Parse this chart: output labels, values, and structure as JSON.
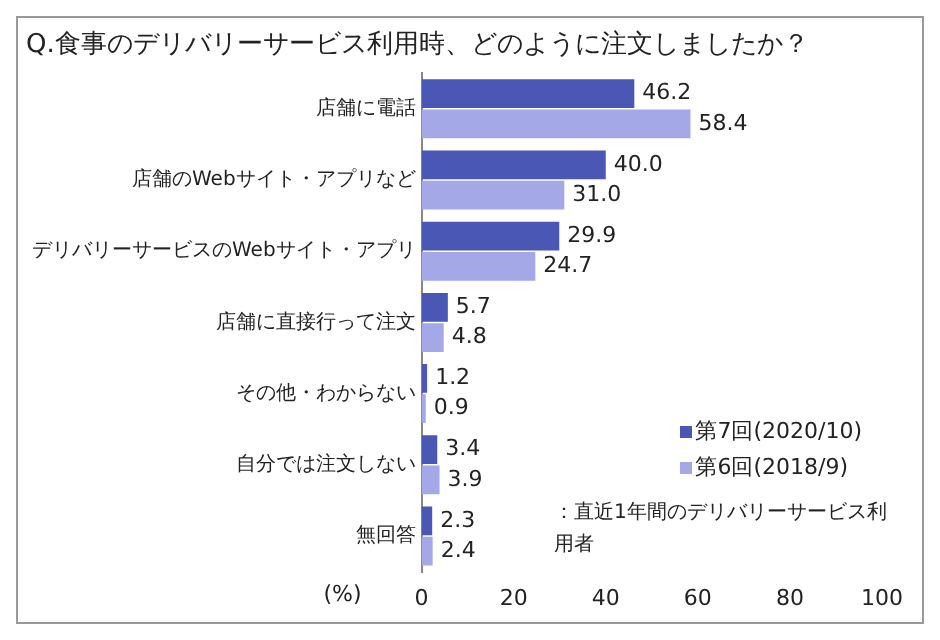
{
  "chart_data": {
    "type": "bar",
    "orientation": "horizontal",
    "title": "Q.食事のデリバリーサービス利用時、どのように注文しましたか？",
    "xlabel": "(%)",
    "categories": [
      "店舗に電話",
      "店舗のWebサイト・アプリなど",
      "デリバリーサービスのWebサイト・アプリ",
      "店舗に直接行って注文",
      "その他・わからない",
      "自分では注文しない",
      "無回答"
    ],
    "series": [
      {
        "name": "第7回(2020/10)",
        "color": "#4a57b5",
        "values": [
          46.2,
          40.0,
          29.9,
          5.7,
          1.2,
          3.4,
          2.3
        ]
      },
      {
        "name": "第6回(2018/9)",
        "color": "#a5a8e6",
        "values": [
          58.4,
          31.0,
          24.7,
          4.8,
          0.9,
          3.9,
          2.4
        ]
      }
    ],
    "value_labels": [
      [
        "46.2",
        "40.0",
        "29.9",
        "5.7",
        "1.2",
        "3.4",
        "2.3"
      ],
      [
        "58.4",
        "31.0",
        "24.7",
        "4.8",
        "0.9",
        "3.9",
        "2.4"
      ]
    ],
    "xlim": [
      0,
      100
    ],
    "xticks": [
      0,
      20,
      40,
      60,
      80,
      100
    ],
    "grid": false,
    "legend": "bottom right",
    "annotations": [
      "：直近1年間のデリバリーサービス利用者"
    ]
  }
}
